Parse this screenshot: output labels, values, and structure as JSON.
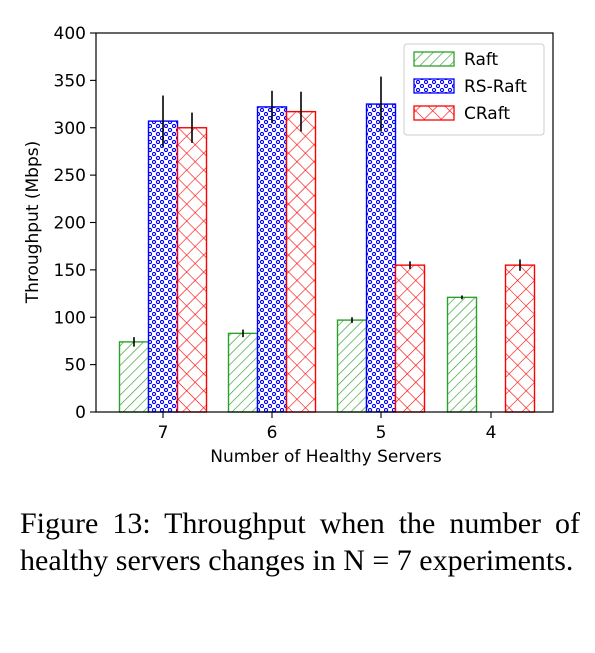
{
  "chart_data": {
    "type": "bar",
    "categories": [
      "7",
      "6",
      "5",
      "4"
    ],
    "series": [
      {
        "name": "Raft",
        "values": [
          74,
          83,
          97,
          121
        ],
        "errors": [
          5,
          4,
          3,
          2
        ],
        "color": "#2ca02c",
        "pattern": "diagonal-hatch"
      },
      {
        "name": "RS-Raft",
        "values": [
          307,
          322,
          325,
          null
        ],
        "errors": [
          27,
          17,
          29,
          null
        ],
        "color": "#0000ff",
        "pattern": "dots"
      },
      {
        "name": "CRaft",
        "values": [
          300,
          317,
          155,
          155
        ],
        "errors": [
          16,
          21,
          4,
          6
        ],
        "color": "#ff0000",
        "pattern": "cross-hatch"
      }
    ],
    "xlabel": "Number of Healthy Servers",
    "ylabel": "Throughput (Mbps)",
    "ylim": [
      0,
      400
    ],
    "yticks": [
      0,
      50,
      100,
      150,
      200,
      250,
      300,
      350,
      400
    ],
    "legend_position": "top-right",
    "grid": false
  },
  "caption": {
    "label": "Figure 13:",
    "text": "Throughput when the number of healthy servers changes in N = 7 experiments."
  }
}
